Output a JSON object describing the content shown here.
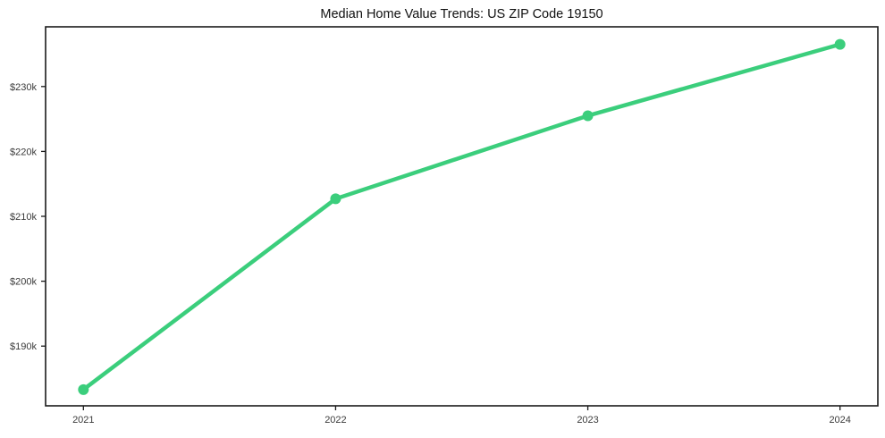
{
  "chart": {
    "title": "Median Home Value Trends: US ZIP Code 19150"
  },
  "chart_data": {
    "type": "line",
    "title": "Median Home Value Trends: US ZIP Code 19150",
    "categories": [
      "2021",
      "2022",
      "2023",
      "2024"
    ],
    "series": [
      {
        "name": "Median Home Value",
        "values": [
          183300,
          212700,
          225500,
          236500
        ]
      }
    ],
    "xlabel": "",
    "ylabel": "",
    "ylim": [
      180800,
      239200
    ],
    "y_ticks": [
      {
        "value": 190000,
        "label": "$190k"
      },
      {
        "value": 200000,
        "label": "$200k"
      },
      {
        "value": 210000,
        "label": "$210k"
      },
      {
        "value": 220000,
        "label": "$220k"
      },
      {
        "value": 230000,
        "label": "$230k"
      }
    ],
    "x_tick_labels": [
      "2021",
      "2022",
      "2023",
      "2024"
    ],
    "grid": false,
    "legend": "none",
    "marker": "circle",
    "colors": {
      "line": "#3bce7c",
      "marker": "#3bce7c",
      "frame": "#1a1a1a",
      "tick_text": "#3a3a3a",
      "title_text": "#111111",
      "background": "#ffffff"
    }
  }
}
